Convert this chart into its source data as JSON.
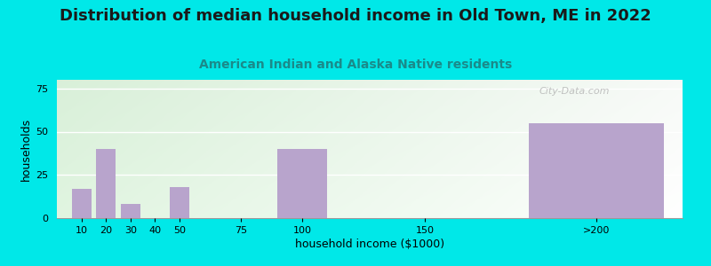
{
  "title": "Distribution of median household income in Old Town, ME in 2022",
  "subtitle": "American Indian and Alaska Native residents",
  "xlabel": "household income ($1000)",
  "ylabel": "households",
  "bar_values": [
    17,
    40,
    8,
    0,
    18,
    0,
    40,
    0,
    55
  ],
  "bar_positions": [
    10,
    20,
    30,
    40,
    50,
    75,
    100,
    150,
    220
  ],
  "bar_widths": [
    8,
    8,
    8,
    8,
    8,
    20,
    20,
    40,
    55
  ],
  "bar_color": "#b8a4cc",
  "outer_bg": "#00e8e8",
  "ylim": [
    0,
    80
  ],
  "yticks": [
    0,
    25,
    50,
    75
  ],
  "xlim": [
    0,
    255
  ],
  "xtick_positions": [
    10,
    20,
    30,
    40,
    50,
    75,
    100,
    150,
    220
  ],
  "xtick_labels": [
    "10",
    "20",
    "30",
    "40",
    "50",
    "75",
    "100",
    "150",
    ">200"
  ],
  "title_fontsize": 13,
  "subtitle_fontsize": 10,
  "axis_label_fontsize": 9,
  "tick_fontsize": 8,
  "watermark": "City-Data.com",
  "subtitle_color": "#1a8a8a",
  "title_color": "#1a1a1a"
}
